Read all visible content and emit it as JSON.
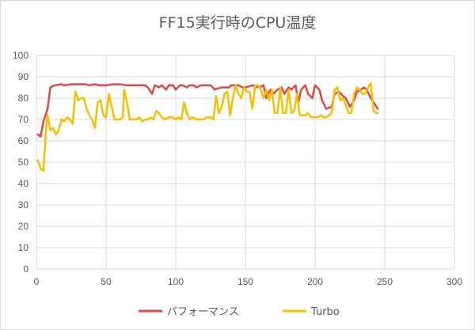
{
  "chart_data": {
    "type": "line",
    "title": "FF15実行時のCPU温度",
    "xlabel": "",
    "ylabel": "",
    "xlim": [
      0,
      300
    ],
    "ylim": [
      0,
      100
    ],
    "xticks": [
      0,
      50,
      100,
      150,
      200,
      250,
      300
    ],
    "yticks": [
      0,
      10,
      20,
      30,
      40,
      50,
      60,
      70,
      80,
      90,
      100
    ],
    "grid": true,
    "legend": "bottom",
    "series": [
      {
        "name": "パフォーマンス",
        "color": "#e04848",
        "points": [
          [
            1,
            63
          ],
          [
            3,
            62
          ],
          [
            5,
            69
          ],
          [
            8,
            75
          ],
          [
            10,
            85
          ],
          [
            13,
            86
          ],
          [
            18,
            86.5
          ],
          [
            20,
            86
          ],
          [
            25,
            86.5
          ],
          [
            30,
            86.5
          ],
          [
            35,
            86.5
          ],
          [
            38,
            86
          ],
          [
            42,
            86.5
          ],
          [
            45,
            86
          ],
          [
            50,
            86
          ],
          [
            55,
            86.5
          ],
          [
            60,
            86.5
          ],
          [
            65,
            86
          ],
          [
            70,
            86
          ],
          [
            75,
            86
          ],
          [
            78,
            86
          ],
          [
            80,
            85
          ],
          [
            83,
            82
          ],
          [
            85,
            86
          ],
          [
            88,
            85
          ],
          [
            90,
            86
          ],
          [
            93,
            84
          ],
          [
            95,
            86
          ],
          [
            98,
            86
          ],
          [
            100,
            84
          ],
          [
            103,
            86
          ],
          [
            105,
            86
          ],
          [
            108,
            85
          ],
          [
            110,
            86
          ],
          [
            113,
            86
          ],
          [
            115,
            85
          ],
          [
            118,
            86
          ],
          [
            120,
            86
          ],
          [
            125,
            86
          ],
          [
            128,
            84
          ],
          [
            130,
            84.5
          ],
          [
            133,
            85
          ],
          [
            138,
            85
          ],
          [
            140,
            86
          ],
          [
            145,
            86
          ],
          [
            148,
            85
          ],
          [
            150,
            85
          ],
          [
            155,
            86
          ],
          [
            160,
            85
          ],
          [
            163,
            86
          ],
          [
            165,
            80
          ],
          [
            168,
            84
          ],
          [
            170,
            82
          ],
          [
            173,
            84
          ],
          [
            176,
            85
          ],
          [
            178,
            82
          ],
          [
            181,
            85
          ],
          [
            183,
            84
          ],
          [
            186,
            86
          ],
          [
            188,
            78
          ],
          [
            190,
            84
          ],
          [
            193,
            86
          ],
          [
            195,
            82
          ],
          [
            198,
            80
          ],
          [
            200,
            86
          ],
          [
            203,
            84
          ],
          [
            205,
            79
          ],
          [
            208,
            75
          ],
          [
            212,
            76
          ],
          [
            214,
            82
          ],
          [
            217,
            83
          ],
          [
            220,
            81
          ],
          [
            222,
            80
          ],
          [
            225,
            76
          ],
          [
            228,
            79
          ],
          [
            230,
            83
          ],
          [
            233,
            84
          ],
          [
            235,
            85
          ],
          [
            237,
            84
          ],
          [
            240,
            80
          ],
          [
            243,
            77
          ],
          [
            245,
            75
          ]
        ]
      },
      {
        "name": "Turbo",
        "color": "#f5c000",
        "points": [
          [
            1,
            51
          ],
          [
            3,
            47
          ],
          [
            5,
            46
          ],
          [
            7,
            66
          ],
          [
            8,
            72
          ],
          [
            10,
            65
          ],
          [
            12,
            66
          ],
          [
            14,
            63
          ],
          [
            16,
            65
          ],
          [
            18,
            70
          ],
          [
            20,
            69
          ],
          [
            22,
            71
          ],
          [
            24,
            70
          ],
          [
            26,
            68
          ],
          [
            28,
            83
          ],
          [
            30,
            79
          ],
          [
            32,
            80
          ],
          [
            34,
            80
          ],
          [
            36,
            75
          ],
          [
            38,
            72
          ],
          [
            40,
            70
          ],
          [
            42,
            66
          ],
          [
            44,
            78
          ],
          [
            46,
            79
          ],
          [
            48,
            72
          ],
          [
            50,
            71
          ],
          [
            52,
            82
          ],
          [
            54,
            76
          ],
          [
            56,
            70
          ],
          [
            58,
            70
          ],
          [
            60,
            70
          ],
          [
            62,
            71
          ],
          [
            63,
            84
          ],
          [
            65,
            78
          ],
          [
            67,
            70
          ],
          [
            70,
            70
          ],
          [
            72,
            70
          ],
          [
            74,
            71
          ],
          [
            76,
            69
          ],
          [
            78,
            70
          ],
          [
            80,
            70
          ],
          [
            82,
            71
          ],
          [
            84,
            70
          ],
          [
            86,
            74
          ],
          [
            88,
            73
          ],
          [
            90,
            71
          ],
          [
            92,
            70
          ],
          [
            95,
            71
          ],
          [
            98,
            71
          ],
          [
            100,
            70
          ],
          [
            102,
            71
          ],
          [
            104,
            70
          ],
          [
            106,
            78
          ],
          [
            108,
            73
          ],
          [
            110,
            70
          ],
          [
            112,
            71
          ],
          [
            115,
            70
          ],
          [
            118,
            70
          ],
          [
            120,
            70
          ],
          [
            122,
            71
          ],
          [
            125,
            71
          ],
          [
            127,
            70
          ],
          [
            129,
            81
          ],
          [
            131,
            73
          ],
          [
            133,
            76
          ],
          [
            135,
            82
          ],
          [
            137,
            83
          ],
          [
            139,
            72
          ],
          [
            141,
            80
          ],
          [
            143,
            86
          ],
          [
            145,
            82
          ],
          [
            147,
            80
          ],
          [
            149,
            85
          ],
          [
            151,
            83
          ],
          [
            153,
            83
          ],
          [
            155,
            75
          ],
          [
            157,
            86
          ],
          [
            159,
            86
          ],
          [
            161,
            84
          ],
          [
            163,
            80
          ],
          [
            165,
            84
          ],
          [
            167,
            79
          ],
          [
            169,
            84
          ],
          [
            171,
            73
          ],
          [
            173,
            73
          ],
          [
            175,
            85
          ],
          [
            177,
            73
          ],
          [
            179,
            73
          ],
          [
            181,
            84
          ],
          [
            183,
            73
          ],
          [
            185,
            74
          ],
          [
            187,
            82
          ],
          [
            189,
            72
          ],
          [
            191,
            72
          ],
          [
            193,
            72
          ],
          [
            195,
            73
          ],
          [
            197,
            71
          ],
          [
            200,
            71
          ],
          [
            202,
            71
          ],
          [
            204,
            72
          ],
          [
            206,
            71
          ],
          [
            208,
            71
          ],
          [
            210,
            72
          ],
          [
            212,
            73
          ],
          [
            214,
            84
          ],
          [
            216,
            85
          ],
          [
            218,
            79
          ],
          [
            220,
            80
          ],
          [
            222,
            77
          ],
          [
            224,
            73
          ],
          [
            226,
            73
          ],
          [
            228,
            82
          ],
          [
            230,
            85
          ],
          [
            232,
            84
          ],
          [
            234,
            82
          ],
          [
            236,
            82
          ],
          [
            238,
            85
          ],
          [
            240,
            87
          ],
          [
            242,
            74
          ],
          [
            244,
            73
          ],
          [
            245,
            73
          ]
        ]
      }
    ]
  }
}
